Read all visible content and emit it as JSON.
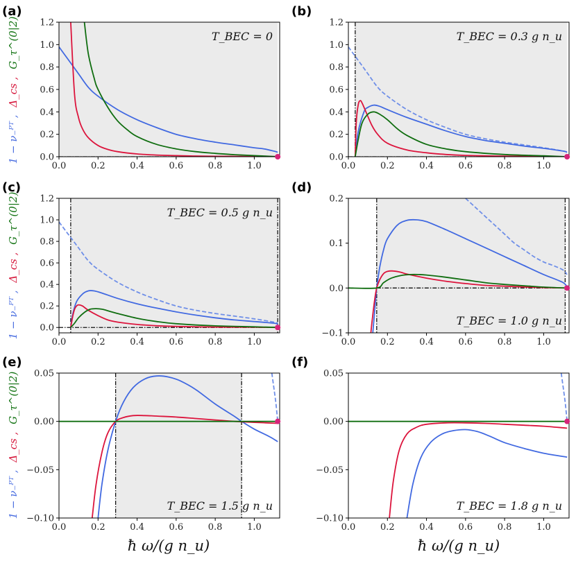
{
  "figure": {
    "xlabel": "ħ ω/(g n_u)",
    "ylabel_parts": [
      {
        "text": "1 − ν₋ᴾᵀ ,",
        "color": "#4a6ee0"
      },
      {
        "text": "Δ_cs ,",
        "color": "#d6183c"
      },
      {
        "text": "G_τ^(0|2)",
        "color": "#137313"
      }
    ],
    "colors": {
      "blue": "#4169e1",
      "blue_dashed": "#6f8fe8",
      "red": "#dc143c",
      "green": "#0f6d0f",
      "shade": "#ebebeb",
      "dot": "#d6247a"
    }
  },
  "chart_data": [
    {
      "id": "a",
      "label": "(a)",
      "type": "line",
      "annotation": "T_BEC = 0",
      "xlim": [
        0.0,
        1.13
      ],
      "ylim": [
        0.0,
        1.2
      ],
      "xticks": [
        "0.0",
        "0.2",
        "0.4",
        "0.6",
        "0.8",
        "1.0"
      ],
      "yticks": [
        "0.0",
        "0.2",
        "0.4",
        "0.6",
        "0.8",
        "1.0",
        "1.2"
      ],
      "shade": [
        0.0,
        1.12
      ],
      "dashdot_vlines": [],
      "zero_line": "dashdot",
      "end_dot": [
        1.12,
        0.0
      ],
      "series": [
        {
          "name": "1 − ν₋ᴾᵀ",
          "color": "blue",
          "style": "solid",
          "x": [
            0.0,
            0.05,
            0.1,
            0.15,
            0.2,
            0.3,
            0.4,
            0.5,
            0.6,
            0.7,
            0.8,
            0.9,
            1.0,
            1.05,
            1.1,
            1.12
          ],
          "y": [
            0.98,
            0.86,
            0.74,
            0.62,
            0.54,
            0.42,
            0.33,
            0.26,
            0.2,
            0.16,
            0.13,
            0.105,
            0.08,
            0.07,
            0.05,
            0.04
          ]
        },
        {
          "name": "Δ_cs",
          "color": "red",
          "style": "solid",
          "x": [
            0.06,
            0.08,
            0.1,
            0.12,
            0.15,
            0.2,
            0.25,
            0.3,
            0.4,
            0.5,
            0.6,
            0.7,
            0.8,
            0.9,
            1.0,
            1.1,
            1.12
          ],
          "y": [
            1.2,
            0.55,
            0.35,
            0.25,
            0.17,
            0.1,
            0.065,
            0.045,
            0.025,
            0.015,
            0.01,
            0.006,
            0.004,
            0.003,
            0.002,
            0.001,
            0.0
          ]
        },
        {
          "name": "G_τ^(0|2)",
          "color": "green",
          "style": "solid",
          "x": [
            0.13,
            0.15,
            0.18,
            0.2,
            0.25,
            0.3,
            0.35,
            0.4,
            0.5,
            0.6,
            0.7,
            0.8,
            0.9,
            1.0,
            1.12
          ],
          "y": [
            1.2,
            0.92,
            0.7,
            0.6,
            0.44,
            0.32,
            0.24,
            0.18,
            0.11,
            0.07,
            0.045,
            0.03,
            0.018,
            0.01,
            0.0
          ]
        }
      ]
    },
    {
      "id": "b",
      "label": "(b)",
      "type": "line",
      "annotation": "T_BEC = 0.3 g n_u",
      "xlim": [
        0.0,
        1.13
      ],
      "ylim": [
        0.0,
        1.2
      ],
      "xticks": [
        "0.0",
        "0.2",
        "0.4",
        "0.6",
        "0.8",
        "1.0"
      ],
      "yticks": [
        "0.0",
        "0.2",
        "0.4",
        "0.6",
        "0.8",
        "1.0",
        "1.2"
      ],
      "shade": [
        0.035,
        1.12
      ],
      "dashdot_vlines": [
        0.035
      ],
      "zero_line": "dashdot",
      "end_dot": [
        1.12,
        0.0
      ],
      "series": [
        {
          "name": "1 − ν₋ᴾᵀ (T=0)",
          "color": "blue_dashed",
          "style": "dashed",
          "x": [
            0.0,
            0.05,
            0.1,
            0.15,
            0.2,
            0.3,
            0.4,
            0.5,
            0.6,
            0.7,
            0.8,
            0.9,
            1.0,
            1.1,
            1.12
          ],
          "y": [
            0.98,
            0.86,
            0.74,
            0.62,
            0.54,
            0.42,
            0.33,
            0.26,
            0.2,
            0.16,
            0.13,
            0.105,
            0.08,
            0.05,
            0.04
          ]
        },
        {
          "name": "1 − ν₋ᴾᵀ",
          "color": "blue",
          "style": "solid",
          "x": [
            0.035,
            0.05,
            0.08,
            0.1,
            0.13,
            0.16,
            0.2,
            0.3,
            0.4,
            0.5,
            0.6,
            0.7,
            0.8,
            0.9,
            1.0,
            1.1,
            1.12
          ],
          "y": [
            0.0,
            0.22,
            0.4,
            0.44,
            0.46,
            0.45,
            0.42,
            0.35,
            0.29,
            0.23,
            0.18,
            0.145,
            0.12,
            0.095,
            0.075,
            0.05,
            0.04
          ]
        },
        {
          "name": "Δ_cs",
          "color": "red",
          "style": "solid",
          "x": [
            0.035,
            0.04,
            0.05,
            0.06,
            0.07,
            0.09,
            0.12,
            0.15,
            0.2,
            0.3,
            0.4,
            0.5,
            0.6,
            0.8,
            1.0,
            1.12
          ],
          "y": [
            0.0,
            0.3,
            0.46,
            0.5,
            0.48,
            0.4,
            0.28,
            0.2,
            0.12,
            0.06,
            0.035,
            0.02,
            0.012,
            0.005,
            0.002,
            0.0
          ]
        },
        {
          "name": "G_τ^(0|2)",
          "color": "green",
          "style": "solid",
          "x": [
            0.035,
            0.05,
            0.07,
            0.1,
            0.13,
            0.16,
            0.2,
            0.25,
            0.3,
            0.4,
            0.5,
            0.6,
            0.8,
            1.0,
            1.12
          ],
          "y": [
            0.0,
            0.15,
            0.3,
            0.38,
            0.4,
            0.38,
            0.33,
            0.25,
            0.19,
            0.11,
            0.07,
            0.045,
            0.02,
            0.008,
            0.0
          ]
        }
      ]
    },
    {
      "id": "c",
      "label": "(c)",
      "type": "line",
      "annotation": "T_BEC = 0.5 g n_u",
      "xlim": [
        0.0,
        1.13
      ],
      "ylim": [
        -0.05,
        1.2
      ],
      "xticks": [
        "0.0",
        "0.2",
        "0.4",
        "0.6",
        "0.8",
        "1.0"
      ],
      "yticks": [
        "0.0",
        "0.2",
        "0.4",
        "0.6",
        "0.8",
        "1.0",
        "1.2"
      ],
      "shade": [
        0.06,
        1.12
      ],
      "dashdot_vlines": [
        0.06,
        1.12
      ],
      "zero_line": "dashdot",
      "end_dot": [
        1.12,
        0.0
      ],
      "series": [
        {
          "name": "1 − ν₋ᴾᵀ (T=0)",
          "color": "blue_dashed",
          "style": "dashed",
          "x": [
            0.0,
            0.05,
            0.1,
            0.15,
            0.2,
            0.3,
            0.4,
            0.5,
            0.6,
            0.7,
            0.8,
            0.9,
            1.0,
            1.1,
            1.12
          ],
          "y": [
            0.98,
            0.86,
            0.74,
            0.62,
            0.54,
            0.42,
            0.33,
            0.26,
            0.2,
            0.16,
            0.13,
            0.105,
            0.08,
            0.05,
            0.04
          ]
        },
        {
          "name": "1 − ν₋ᴾᵀ",
          "color": "blue",
          "style": "solid",
          "x": [
            0.06,
            0.07,
            0.09,
            0.12,
            0.15,
            0.18,
            0.22,
            0.3,
            0.4,
            0.5,
            0.6,
            0.7,
            0.8,
            0.9,
            1.0,
            1.1,
            1.12
          ],
          "y": [
            0.0,
            0.12,
            0.24,
            0.31,
            0.34,
            0.34,
            0.32,
            0.27,
            0.22,
            0.18,
            0.145,
            0.115,
            0.09,
            0.07,
            0.055,
            0.04,
            0.03
          ]
        },
        {
          "name": "Δ_cs",
          "color": "red",
          "style": "solid",
          "x": [
            0.06,
            0.07,
            0.08,
            0.09,
            0.1,
            0.12,
            0.15,
            0.2,
            0.25,
            0.3,
            0.4,
            0.5,
            0.6,
            0.8,
            1.0,
            1.12
          ],
          "y": [
            0.0,
            0.1,
            0.17,
            0.2,
            0.21,
            0.2,
            0.16,
            0.11,
            0.07,
            0.05,
            0.028,
            0.016,
            0.01,
            0.004,
            0.002,
            0.0
          ]
        },
        {
          "name": "G_τ^(0|2)",
          "color": "green",
          "style": "solid",
          "x": [
            0.06,
            0.08,
            0.1,
            0.13,
            0.16,
            0.19,
            0.22,
            0.26,
            0.3,
            0.4,
            0.5,
            0.6,
            0.8,
            1.0,
            1.12
          ],
          "y": [
            0.0,
            0.04,
            0.09,
            0.14,
            0.17,
            0.175,
            0.17,
            0.15,
            0.13,
            0.085,
            0.055,
            0.035,
            0.015,
            0.006,
            0.0
          ]
        }
      ]
    },
    {
      "id": "d",
      "label": "(d)",
      "type": "line",
      "annotation": "T_BEC = 1.0 g n_u",
      "xlim": [
        0.0,
        1.13
      ],
      "ylim": [
        -0.1,
        0.2
      ],
      "xticks": [
        "0.0",
        "0.2",
        "0.4",
        "0.6",
        "0.8",
        "1.0"
      ],
      "yticks": [
        "-0.1",
        "0.0",
        "0.1",
        "0.2"
      ],
      "shade": [
        0.145,
        1.11
      ],
      "dashdot_vlines": [
        0.145,
        1.11
      ],
      "zero_line": "dashdot",
      "zero_line_range": [
        0.145,
        1.11
      ],
      "end_dot": [
        1.12,
        0.0
      ],
      "series": [
        {
          "name": "1 − ν₋ᴾᵀ (T=0)",
          "color": "blue_dashed",
          "style": "dashed",
          "x": [
            0.6,
            0.65,
            0.7,
            0.75,
            0.8,
            0.85,
            0.9,
            0.95,
            1.0,
            1.05,
            1.1,
            1.12
          ],
          "y": [
            0.2,
            0.18,
            0.16,
            0.14,
            0.12,
            0.1,
            0.085,
            0.07,
            0.058,
            0.05,
            0.04,
            0.03
          ]
        },
        {
          "name": "1 − ν₋ᴾᵀ",
          "color": "blue",
          "style": "solid",
          "x": [
            0.125,
            0.135,
            0.145,
            0.16,
            0.18,
            0.2,
            0.25,
            0.3,
            0.35,
            0.4,
            0.5,
            0.6,
            0.7,
            0.8,
            0.9,
            1.0,
            1.1,
            1.12
          ],
          "y": [
            -0.1,
            -0.05,
            0.0,
            0.045,
            0.085,
            0.11,
            0.14,
            0.151,
            0.152,
            0.148,
            0.13,
            0.11,
            0.09,
            0.07,
            0.05,
            0.03,
            0.012,
            0.0
          ]
        },
        {
          "name": "Δ_cs",
          "color": "red",
          "style": "solid",
          "x": [
            0.115,
            0.125,
            0.135,
            0.145,
            0.16,
            0.18,
            0.2,
            0.23,
            0.27,
            0.3,
            0.4,
            0.5,
            0.6,
            0.7,
            0.8,
            1.0,
            1.12
          ],
          "y": [
            -0.1,
            -0.06,
            -0.025,
            0.0,
            0.018,
            0.032,
            0.037,
            0.038,
            0.035,
            0.031,
            0.022,
            0.015,
            0.01,
            0.006,
            0.004,
            0.001,
            0.0
          ]
        },
        {
          "name": "G_τ^(0|2)",
          "color": "green",
          "style": "solid",
          "x": [
            0.0,
            0.145,
            0.18,
            0.22,
            0.27,
            0.32,
            0.36,
            0.4,
            0.5,
            0.6,
            0.7,
            0.8,
            0.9,
            1.0,
            1.12
          ],
          "y": [
            0.0,
            0.0,
            0.012,
            0.022,
            0.028,
            0.03,
            0.03,
            0.029,
            0.024,
            0.018,
            0.012,
            0.008,
            0.005,
            0.002,
            0.0
          ]
        }
      ]
    },
    {
      "id": "e",
      "label": "(e)",
      "type": "line",
      "annotation": "T_BEC = 1.5 g n_u",
      "xlim": [
        0.0,
        1.13
      ],
      "ylim": [
        -0.1,
        0.05
      ],
      "xticks": [
        "0.0",
        "0.2",
        "0.4",
        "0.6",
        "0.8",
        "1.0"
      ],
      "yticks": [
        "-0.10",
        "-0.05",
        "0.00",
        "0.05"
      ],
      "shade": [
        0.29,
        0.935
      ],
      "dashdot_vlines": [
        0.29,
        0.935
      ],
      "zero_line": "dashdot",
      "zero_line_range": [
        0.29,
        0.935
      ],
      "end_dot": [
        1.12,
        0.0
      ],
      "series": [
        {
          "name": "1 − ν₋ᴾᵀ (T=0)",
          "color": "blue_dashed",
          "style": "dashed",
          "x": [
            1.09,
            1.1,
            1.11,
            1.12
          ],
          "y": [
            0.05,
            0.035,
            0.02,
            0.0
          ]
        },
        {
          "name": "1 − ν₋ᴾᵀ",
          "color": "blue",
          "style": "solid",
          "x": [
            0.2,
            0.22,
            0.25,
            0.29,
            0.33,
            0.38,
            0.44,
            0.5,
            0.56,
            0.62,
            0.7,
            0.8,
            0.9,
            0.935,
            1.0,
            1.08,
            1.12
          ],
          "y": [
            -0.1,
            -0.065,
            -0.03,
            0.0,
            0.02,
            0.035,
            0.044,
            0.047,
            0.046,
            0.042,
            0.033,
            0.018,
            0.005,
            0.0,
            -0.008,
            -0.016,
            -0.021
          ]
        },
        {
          "name": "Δ_cs",
          "color": "red",
          "style": "solid",
          "x": [
            0.17,
            0.19,
            0.22,
            0.25,
            0.29,
            0.33,
            0.38,
            0.44,
            0.5,
            0.6,
            0.7,
            0.8,
            0.9,
            1.0,
            1.12
          ],
          "y": [
            -0.1,
            -0.065,
            -0.032,
            -0.012,
            0.0,
            0.004,
            0.006,
            0.006,
            0.0055,
            0.0045,
            0.003,
            0.0015,
            0.0,
            -0.001,
            -0.002
          ]
        },
        {
          "name": "G_τ^(0|2)",
          "color": "green",
          "style": "solid",
          "x": [
            0.0,
            1.12
          ],
          "y": [
            0.0,
            0.0
          ]
        }
      ]
    },
    {
      "id": "f",
      "label": "(f)",
      "type": "line",
      "annotation": "T_BEC = 1.8 g n_u",
      "xlim": [
        0.0,
        1.13
      ],
      "ylim": [
        -0.1,
        0.05
      ],
      "xticks": [
        "0.0",
        "0.2",
        "0.4",
        "0.6",
        "0.8",
        "1.0"
      ],
      "yticks": [
        "-0.10",
        "-0.05",
        "0.00",
        "0.05"
      ],
      "shade": null,
      "dashdot_vlines": [],
      "zero_line": "none",
      "end_dot": [
        1.12,
        0.0
      ],
      "series": [
        {
          "name": "1 − ν₋ᴾᵀ (T=0)",
          "color": "blue_dashed",
          "style": "dashed",
          "x": [
            1.09,
            1.1,
            1.11,
            1.12
          ],
          "y": [
            0.05,
            0.035,
            0.02,
            0.0
          ]
        },
        {
          "name": "1 − ν₋ᴾᵀ",
          "color": "blue",
          "style": "solid",
          "x": [
            0.3,
            0.33,
            0.37,
            0.42,
            0.48,
            0.54,
            0.6,
            0.66,
            0.72,
            0.8,
            0.9,
            1.0,
            1.12
          ],
          "y": [
            -0.1,
            -0.065,
            -0.038,
            -0.022,
            -0.013,
            -0.0095,
            -0.0085,
            -0.0105,
            -0.015,
            -0.022,
            -0.028,
            -0.033,
            -0.037
          ]
        },
        {
          "name": "Δ_cs",
          "color": "red",
          "style": "solid",
          "x": [
            0.21,
            0.23,
            0.26,
            0.3,
            0.35,
            0.4,
            0.5,
            0.6,
            0.7,
            0.8,
            0.9,
            1.0,
            1.12
          ],
          "y": [
            -0.1,
            -0.062,
            -0.03,
            -0.013,
            -0.006,
            -0.003,
            -0.0015,
            -0.0015,
            -0.002,
            -0.003,
            -0.004,
            -0.005,
            -0.007
          ]
        },
        {
          "name": "G_τ^(0|2)",
          "color": "green",
          "style": "solid",
          "x": [
            0.0,
            1.12
          ],
          "y": [
            0.0,
            0.0
          ]
        }
      ]
    }
  ]
}
